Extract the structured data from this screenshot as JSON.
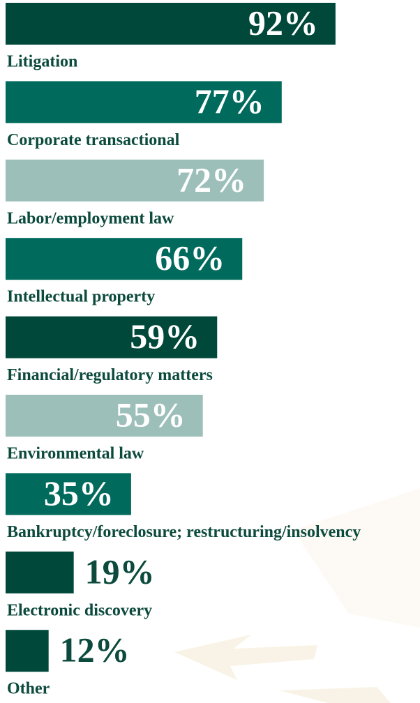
{
  "chart_data": {
    "type": "bar",
    "categories": [
      "Litigation",
      "Corporate transactional",
      "Labor/employment law",
      "Intellectual property",
      "Financial/regulatory matters",
      "Environmental law",
      "Bankruptcy/foreclosure; restructuring/insolvency",
      "Electronic discovery",
      "Other"
    ],
    "values": [
      92,
      77,
      72,
      66,
      59,
      55,
      35,
      19,
      12
    ],
    "value_labels": [
      "92%",
      "77%",
      "72%",
      "66%",
      "59%",
      "55%",
      "35%",
      "19%",
      "12%"
    ],
    "colors": [
      "#00483a",
      "#006b5c",
      "#9dbfba",
      "#006b5c",
      "#00483a",
      "#9dbfba",
      "#006b5c",
      "#00483a",
      "#00483a"
    ],
    "xlim": [
      0,
      100
    ]
  }
}
